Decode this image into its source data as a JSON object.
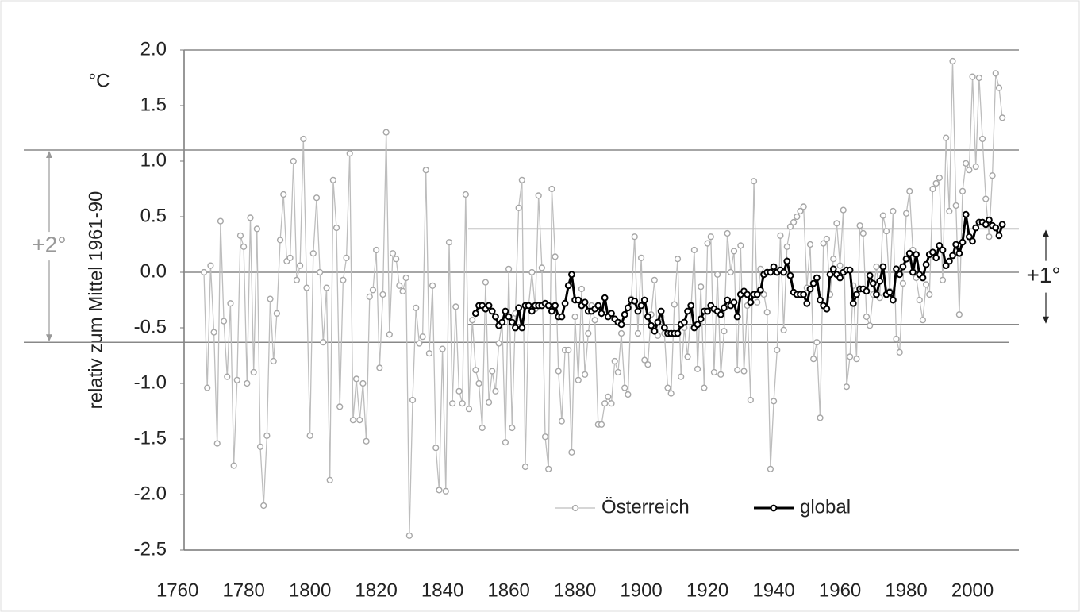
{
  "chart_data": {
    "type": "line",
    "y_unit": "°C",
    "ylabel": "relativ zum Mittel 1961-90",
    "xlim": [
      1762,
      2014
    ],
    "xticks": [
      1760,
      1780,
      1800,
      1820,
      1840,
      1860,
      1880,
      1900,
      1920,
      1940,
      1960,
      1980,
      2000
    ],
    "ylim": [
      -2.5,
      2
    ],
    "yticks": [
      {
        "value": 2,
        "label": "2.0"
      },
      1.5,
      {
        "value": 1,
        "label": "1.0"
      },
      0.5,
      {
        "value": 0,
        "label": "0.0"
      },
      -0.5,
      {
        "value": -1,
        "label": "-1.0"
      },
      -1.5,
      {
        "value": -2,
        "label": "-2.0"
      },
      -2.5
    ],
    "annotations": [
      {
        "text": "+2°",
        "from": 1.1,
        "to": -0.63
      },
      {
        "text": "+1°",
        "from": 0.39,
        "to": -0.47
      }
    ],
    "series": [
      {
        "name": "Österreich",
        "color": "#a6a6a6",
        "x": [
          1768,
          1769,
          1770,
          1771,
          1772,
          1773,
          1774,
          1775,
          1776,
          1777,
          1778,
          1779,
          1780,
          1781,
          1782,
          1783,
          1784,
          1785,
          1786,
          1787,
          1788,
          1789,
          1790,
          1791,
          1792,
          1793,
          1794,
          1795,
          1796,
          1797,
          1798,
          1799,
          1800,
          1801,
          1802,
          1803,
          1804,
          1805,
          1806,
          1807,
          1808,
          1809,
          1810,
          1811,
          1812,
          1813,
          1814,
          1815,
          1816,
          1817,
          1818,
          1819,
          1820,
          1821,
          1822,
          1823,
          1824,
          1825,
          1826,
          1827,
          1828,
          1829,
          1830,
          1831,
          1832,
          1833,
          1834,
          1835,
          1836,
          1837,
          1838,
          1839,
          1840,
          1841,
          1842,
          1843,
          1844,
          1845,
          1846,
          1847,
          1848,
          1849,
          1850,
          1851,
          1852,
          1853,
          1854,
          1855,
          1856,
          1857,
          1858,
          1859,
          1860,
          1861,
          1862,
          1863,
          1864,
          1865,
          1866,
          1867,
          1868,
          1869,
          1870,
          1871,
          1872,
          1873,
          1874,
          1875,
          1876,
          1877,
          1878,
          1879,
          1880,
          1881,
          1882,
          1883,
          1884,
          1885,
          1886,
          1887,
          1888,
          1889,
          1890,
          1891,
          1892,
          1893,
          1894,
          1895,
          1896,
          1897,
          1898,
          1899,
          1900,
          1901,
          1902,
          1903,
          1904,
          1905,
          1906,
          1907,
          1908,
          1909,
          1910,
          1911,
          1912,
          1913,
          1914,
          1915,
          1916,
          1917,
          1918,
          1919,
          1920,
          1921,
          1922,
          1923,
          1924,
          1925,
          1926,
          1927,
          1928,
          1929,
          1930,
          1931,
          1932,
          1933,
          1934,
          1935,
          1936,
          1937,
          1938,
          1939,
          1940,
          1941,
          1942,
          1943,
          1944,
          1945,
          1946,
          1947,
          1948,
          1949,
          1950,
          1951,
          1952,
          1953,
          1954,
          1955,
          1956,
          1957,
          1958,
          1959,
          1960,
          1961,
          1962,
          1963,
          1964,
          1965,
          1966,
          1967,
          1968,
          1969,
          1970,
          1971,
          1972,
          1973,
          1974,
          1975,
          1976,
          1977,
          1978,
          1979,
          1980,
          1981,
          1982,
          1983,
          1984,
          1985,
          1986,
          1987,
          1988,
          1989,
          1990,
          1991,
          1992,
          1993,
          1994,
          1995,
          1996,
          1997,
          1998,
          1999,
          2000,
          2001,
          2002,
          2003,
          2004,
          2005,
          2006,
          2007,
          2008,
          2009
        ],
        "values": [
          0.0,
          -1.04,
          0.06,
          -0.54,
          -1.54,
          0.46,
          -0.44,
          -0.94,
          -0.28,
          -1.74,
          -0.97,
          0.33,
          0.23,
          -1.0,
          0.49,
          -0.9,
          0.39,
          -1.57,
          -2.1,
          -1.47,
          -0.24,
          -0.8,
          -0.37,
          0.29,
          0.7,
          0.1,
          0.13,
          1.0,
          -0.07,
          0.06,
          1.2,
          -0.14,
          -1.47,
          0.17,
          0.67,
          0.0,
          -0.63,
          -0.14,
          -1.87,
          0.83,
          0.4,
          -1.21,
          -0.07,
          0.13,
          1.07,
          -1.33,
          -0.96,
          -1.33,
          -1.0,
          -1.52,
          -0.22,
          -0.16,
          0.2,
          -0.86,
          -0.2,
          1.26,
          -0.56,
          0.17,
          0.12,
          -0.12,
          -0.17,
          -0.05,
          -2.37,
          -1.15,
          -0.32,
          -0.64,
          -0.58,
          0.92,
          -0.73,
          -0.12,
          -1.58,
          -1.96,
          -0.69,
          -1.97,
          0.27,
          -1.18,
          -0.31,
          -1.07,
          -1.18,
          0.7,
          -1.23,
          -0.43,
          -0.88,
          -1.0,
          -1.4,
          -0.09,
          -1.17,
          -0.89,
          -1.07,
          -0.64,
          -0.45,
          -1.53,
          0.03,
          -1.4,
          -0.37,
          0.58,
          0.83,
          -1.75,
          -0.3,
          0.0,
          -0.33,
          0.69,
          0.04,
          -1.48,
          -1.77,
          0.75,
          0.14,
          -0.89,
          -1.34,
          -0.7,
          -0.7,
          -1.62,
          -0.4,
          -0.97,
          -0.15,
          -0.92,
          -0.55,
          -0.3,
          -0.43,
          -1.37,
          -1.37,
          -1.18,
          -1.12,
          -1.18,
          -0.8,
          -0.9,
          -0.55,
          -1.04,
          -1.1,
          -0.24,
          0.32,
          -0.55,
          0.13,
          -0.79,
          -0.83,
          -0.38,
          -0.07,
          -0.57,
          -0.4,
          -0.55,
          -1.04,
          -1.09,
          -0.29,
          0.12,
          -0.94,
          -0.5,
          -0.76,
          -0.35,
          0.2,
          -0.87,
          -0.13,
          -1.04,
          0.26,
          0.32,
          -0.9,
          -0.02,
          -0.92,
          -0.53,
          0.35,
          0.0,
          0.19,
          -0.88,
          0.24,
          -0.89,
          -0.3,
          -1.15,
          0.82,
          -0.27,
          0.03,
          -0.2,
          -0.36,
          -1.77,
          -1.16,
          -0.7,
          0.33,
          -0.52,
          0.23,
          0.41,
          0.45,
          0.5,
          0.55,
          0.59,
          -0.14,
          0.25,
          -0.78,
          -0.63,
          -1.31,
          0.26,
          0.3,
          -0.2,
          0.12,
          0.44,
          0.06,
          0.56,
          -1.03,
          -0.76,
          -0.12,
          -0.78,
          0.42,
          0.35,
          -0.4,
          -0.48,
          -0.2,
          0.05,
          -0.23,
          0.51,
          0.37,
          -0.17,
          0.55,
          -0.6,
          -0.72,
          -0.1,
          0.53,
          0.73,
          0.2,
          -0.05,
          -0.25,
          -0.43,
          -0.11,
          -0.2,
          0.75,
          0.8,
          0.85,
          -0.07,
          1.21,
          0.55,
          1.9,
          0.6,
          -0.38,
          0.73,
          0.98,
          0.92,
          1.76,
          0.95,
          1.75,
          1.2,
          0.66,
          0.32,
          0.87,
          1.79,
          1.66,
          1.39
        ]
      },
      {
        "name": "global",
        "color": "#000000",
        "x": [
          1850,
          1851,
          1852,
          1853,
          1854,
          1855,
          1856,
          1857,
          1858,
          1859,
          1860,
          1861,
          1862,
          1863,
          1864,
          1865,
          1866,
          1867,
          1868,
          1869,
          1870,
          1871,
          1872,
          1873,
          1874,
          1875,
          1876,
          1877,
          1878,
          1879,
          1880,
          1881,
          1882,
          1883,
          1884,
          1885,
          1886,
          1887,
          1888,
          1889,
          1890,
          1891,
          1892,
          1893,
          1894,
          1895,
          1896,
          1897,
          1898,
          1899,
          1900,
          1901,
          1902,
          1903,
          1904,
          1905,
          1906,
          1907,
          1908,
          1909,
          1910,
          1911,
          1912,
          1913,
          1914,
          1915,
          1916,
          1917,
          1918,
          1919,
          1920,
          1921,
          1922,
          1923,
          1924,
          1925,
          1926,
          1927,
          1928,
          1929,
          1930,
          1931,
          1932,
          1933,
          1934,
          1935,
          1936,
          1937,
          1938,
          1939,
          1940,
          1941,
          1942,
          1943,
          1944,
          1945,
          1946,
          1947,
          1948,
          1949,
          1950,
          1951,
          1952,
          1953,
          1954,
          1955,
          1956,
          1957,
          1958,
          1959,
          1960,
          1961,
          1962,
          1963,
          1964,
          1965,
          1966,
          1967,
          1968,
          1969,
          1970,
          1971,
          1972,
          1973,
          1974,
          1975,
          1976,
          1977,
          1978,
          1979,
          1980,
          1981,
          1982,
          1983,
          1984,
          1985,
          1986,
          1987,
          1988,
          1989,
          1990,
          1991,
          1992,
          1993,
          1994,
          1995,
          1996,
          1997,
          1998,
          1999,
          2000,
          2001,
          2002,
          2003,
          2004,
          2005,
          2006,
          2007,
          2008,
          2009
        ],
        "values": [
          -0.37,
          -0.3,
          -0.3,
          -0.33,
          -0.3,
          -0.35,
          -0.4,
          -0.48,
          -0.45,
          -0.35,
          -0.4,
          -0.45,
          -0.5,
          -0.32,
          -0.5,
          -0.3,
          -0.3,
          -0.35,
          -0.3,
          -0.3,
          -0.3,
          -0.28,
          -0.3,
          -0.35,
          -0.3,
          -0.4,
          -0.4,
          -0.28,
          -0.12,
          -0.02,
          -0.25,
          -0.25,
          -0.3,
          -0.27,
          -0.35,
          -0.35,
          -0.33,
          -0.3,
          -0.37,
          -0.23,
          -0.4,
          -0.37,
          -0.42,
          -0.45,
          -0.47,
          -0.38,
          -0.32,
          -0.25,
          -0.26,
          -0.35,
          -0.3,
          -0.25,
          -0.4,
          -0.48,
          -0.53,
          -0.45,
          -0.35,
          -0.5,
          -0.55,
          -0.55,
          -0.55,
          -0.55,
          -0.47,
          -0.45,
          -0.35,
          -0.3,
          -0.5,
          -0.47,
          -0.42,
          -0.35,
          -0.35,
          -0.3,
          -0.33,
          -0.35,
          -0.38,
          -0.32,
          -0.25,
          -0.3,
          -0.27,
          -0.4,
          -0.2,
          -0.17,
          -0.2,
          -0.27,
          -0.2,
          -0.2,
          -0.16,
          -0.02,
          0.0,
          0.0,
          0.05,
          0.0,
          0.02,
          0.0,
          0.1,
          -0.03,
          -0.18,
          -0.2,
          -0.2,
          -0.2,
          -0.28,
          -0.15,
          -0.1,
          -0.05,
          -0.25,
          -0.3,
          -0.33,
          -0.02,
          0.03,
          -0.02,
          -0.05,
          0.0,
          0.02,
          0.02,
          -0.28,
          -0.2,
          -0.15,
          -0.15,
          -0.17,
          -0.03,
          -0.1,
          -0.2,
          -0.08,
          0.05,
          -0.2,
          -0.18,
          -0.25,
          0.03,
          -0.02,
          0.05,
          0.12,
          0.17,
          0.0,
          0.16,
          -0.02,
          -0.05,
          0.07,
          0.16,
          0.18,
          0.13,
          0.24,
          0.2,
          0.06,
          0.1,
          0.15,
          0.25,
          0.17,
          0.27,
          0.52,
          0.32,
          0.28,
          0.4,
          0.45,
          0.45,
          0.43,
          0.47,
          0.42,
          0.4,
          0.33,
          0.43
        ]
      }
    ]
  }
}
